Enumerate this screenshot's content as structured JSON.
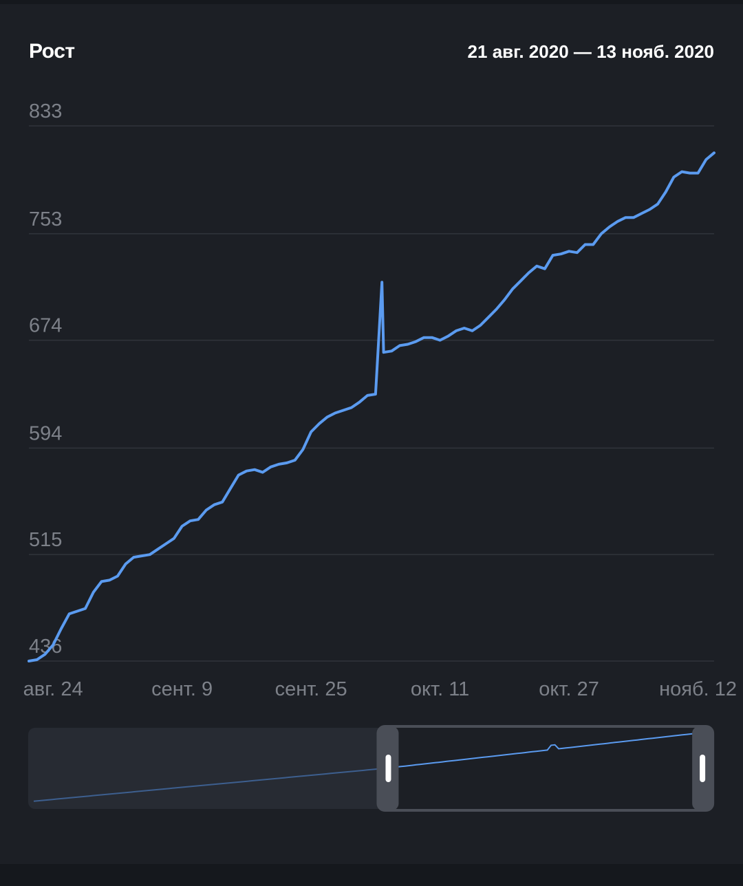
{
  "header": {
    "title": "Рост",
    "date_range": "21 авг. 2020 — 13 нояб. 2020"
  },
  "colors": {
    "line": "#5b9bf0",
    "grid": "#30343b",
    "tick_text": "#7d8189",
    "background": "#1c1f25",
    "navigator_dim": "#272b33",
    "navigator_handle": "#4a4e57",
    "navigator_line_dim": "#3d5f8f"
  },
  "chart_data": {
    "type": "line",
    "title": "Рост",
    "xlabel": "",
    "ylabel": "",
    "ylim": [
      436,
      833
    ],
    "y_ticks": [
      436,
      515,
      594,
      674,
      753,
      833
    ],
    "y_tick_labels": [
      "436",
      "515",
      "594",
      "674",
      "753",
      "833"
    ],
    "x_tick_labels": [
      "авг. 24",
      "сент. 9",
      "сент. 25",
      "окт. 11",
      "окт. 27",
      "нояб. 12"
    ],
    "x_tick_days": [
      3,
      19,
      35,
      51,
      67,
      83
    ],
    "x_domain": [
      "2020-08-21",
      "2020-11-13"
    ],
    "grid": true,
    "legend": "none",
    "series": [
      {
        "x": [
          0,
          1,
          2,
          3,
          4,
          5,
          6,
          7,
          8,
          9,
          10,
          11,
          12,
          13,
          14,
          15,
          16,
          17,
          18,
          19,
          20,
          21,
          22,
          23,
          24,
          25,
          26,
          27,
          28,
          29,
          30,
          31,
          32,
          33,
          34,
          35,
          36,
          37,
          38,
          39,
          40,
          41,
          42,
          43,
          43.8,
          44,
          45,
          46,
          47,
          48,
          49,
          50,
          51,
          52,
          53,
          54,
          55,
          56,
          57,
          58,
          59,
          60,
          61,
          62,
          63,
          64,
          65,
          66,
          67,
          68,
          69,
          70,
          71,
          72,
          73,
          74,
          75,
          76,
          77,
          78,
          79,
          80,
          81,
          82,
          83,
          84,
          85
        ],
        "values": [
          436,
          437,
          441,
          448,
          460,
          471,
          473,
          475,
          487,
          495,
          496,
          499,
          508,
          513,
          514,
          515,
          519,
          523,
          527,
          536,
          540,
          541,
          548,
          552,
          554,
          564,
          574,
          577,
          578,
          576,
          580,
          582,
          583,
          585,
          593,
          606,
          612,
          617,
          620,
          622,
          624,
          628,
          633,
          634,
          717,
          665,
          666,
          670,
          671,
          673,
          676,
          676,
          674,
          677,
          681,
          683,
          681,
          685,
          691,
          697,
          704,
          712,
          718,
          724,
          729,
          727,
          737,
          738,
          740,
          739,
          745,
          745,
          753,
          758,
          762,
          765,
          765,
          768,
          771,
          775,
          784,
          795,
          799,
          798,
          798,
          808,
          813
        ]
      }
    ],
    "navigator": {
      "selection_start_fraction": 0.51,
      "selection_end_fraction": 0.96
    }
  }
}
